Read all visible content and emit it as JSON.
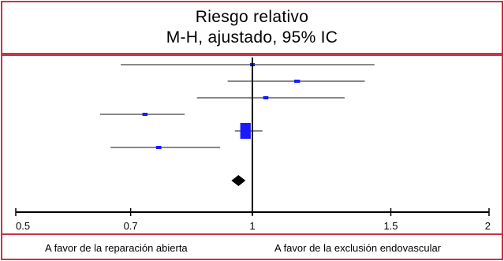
{
  "header": {
    "title_line1": "Riesgo relativo",
    "title_line2": "M-H, ajustado, 95% IC"
  },
  "footer": {
    "favors_left": "A favor de la reparación abierta",
    "favors_right": "A favor de la exclusión endovascular"
  },
  "chart_data": {
    "type": "forest",
    "scale": "log",
    "xlim": [
      0.5,
      2
    ],
    "reference_line": 1,
    "ticks": [
      {
        "value": 0.5,
        "label": "0.5"
      },
      {
        "value": 0.7,
        "label": "0.7"
      },
      {
        "value": 1,
        "label": "1"
      },
      {
        "value": 1.5,
        "label": "1.5"
      },
      {
        "value": 2,
        "label": "2"
      }
    ],
    "studies": [
      {
        "estimate": 1.0,
        "lower": 0.68,
        "upper": 1.43,
        "weight": 1.0
      },
      {
        "estimate": 1.14,
        "lower": 0.93,
        "upper": 1.39,
        "weight": 1.6
      },
      {
        "estimate": 1.04,
        "lower": 0.85,
        "upper": 1.31,
        "weight": 1.3
      },
      {
        "estimate": 0.73,
        "lower": 0.64,
        "upper": 0.82,
        "weight": 1.2
      },
      {
        "estimate": 0.98,
        "lower": 0.95,
        "upper": 1.03,
        "weight": 6.0
      },
      {
        "estimate": 0.76,
        "lower": 0.66,
        "upper": 0.91,
        "weight": 1.3
      }
    ],
    "pooled": {
      "estimate": 0.96,
      "lower": 0.94,
      "upper": 0.98
    },
    "colors": {
      "study": "#1a1aff",
      "ci": "#888888",
      "pooled": "#000000",
      "axis": "#000000",
      "frame": "#cc3344"
    }
  }
}
